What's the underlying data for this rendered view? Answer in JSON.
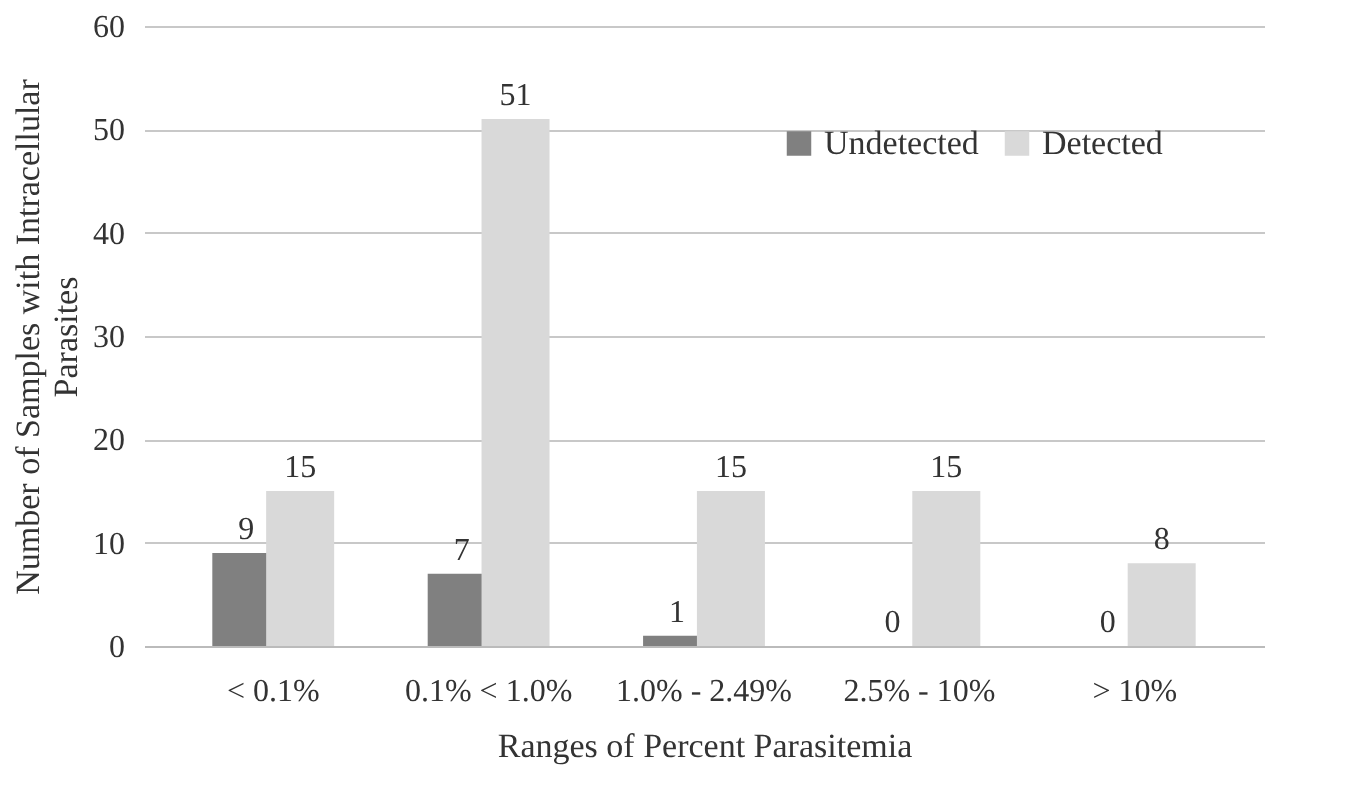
{
  "chart_data": {
    "type": "bar",
    "xlabel": "Ranges of Percent Parasitemia",
    "ylabel": "Number of Samples with Intracellular Parasites",
    "categories": [
      "< 0.1%",
      "0.1% < 1.0%",
      "1.0% - 2.49%",
      "2.5% - 10%",
      "> 10%"
    ],
    "series": [
      {
        "name": "Undetected",
        "color": "#808080",
        "values": [
          9,
          7,
          1,
          0,
          0
        ]
      },
      {
        "name": "Detected",
        "color": "#d9d9d9",
        "values": [
          15,
          51,
          15,
          15,
          8
        ]
      }
    ],
    "ylim": [
      0,
      60
    ],
    "yticks": [
      0,
      10,
      20,
      30,
      40,
      50,
      60
    ],
    "grid": "y",
    "legend": "top right",
    "data_labels": true
  }
}
